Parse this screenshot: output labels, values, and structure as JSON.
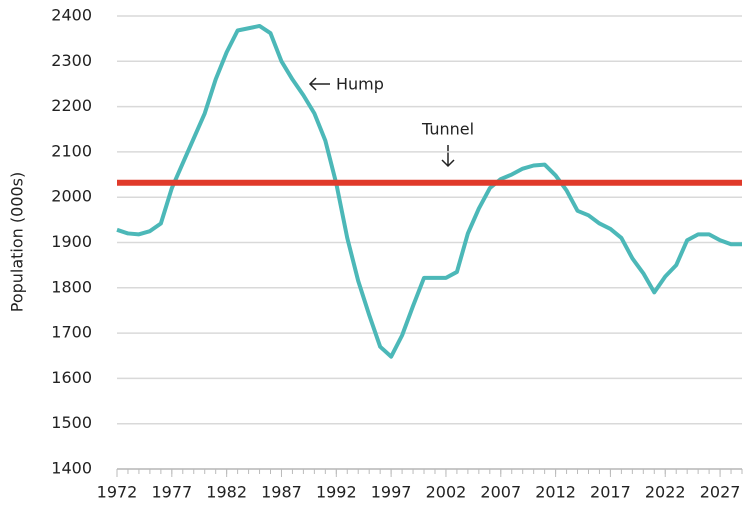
{
  "chart_data": {
    "type": "line",
    "y_axis_label": "Population (000s)",
    "x": [
      1972,
      1973,
      1974,
      1975,
      1976,
      1977,
      1978,
      1979,
      1980,
      1981,
      1982,
      1983,
      1984,
      1985,
      1986,
      1987,
      1988,
      1989,
      1990,
      1991,
      1992,
      1993,
      1994,
      1995,
      1996,
      1997,
      1998,
      1999,
      2000,
      2001,
      2002,
      2003,
      2004,
      2005,
      2006,
      2007,
      2008,
      2009,
      2010,
      2011,
      2012,
      2013,
      2014,
      2015,
      2016,
      2017,
      2018,
      2019,
      2020,
      2021,
      2022,
      2023,
      2024,
      2025,
      2026,
      2027,
      2028,
      2029
    ],
    "series": [
      {
        "color": "#4cb8b8",
        "values": [
          1928,
          1920,
          1918,
          1925,
          1942,
          2020,
          2075,
          2130,
          2185,
          2260,
          2320,
          2368,
          2373,
          2378,
          2362,
          2300,
          2260,
          2225,
          2185,
          2125,
          2030,
          1910,
          1815,
          1740,
          1670,
          1648,
          1695,
          1760,
          1822,
          1822,
          1822,
          1835,
          1920,
          1975,
          2020,
          2040,
          2050,
          2063,
          2070,
          2072,
          2048,
          2015,
          1970,
          1960,
          1942,
          1930,
          1910,
          1865,
          1832,
          1790,
          1825,
          1850,
          1905,
          1918,
          1918,
          1905,
          1896,
          1896
        ]
      }
    ],
    "reference_line": {
      "value": 2032,
      "color": "#e03a2a"
    },
    "annotations": [
      "Hump",
      "Tunnel"
    ],
    "xlim": [
      1972,
      2029
    ],
    "xticks": [
      1972,
      1977,
      1982,
      1987,
      1992,
      1997,
      2002,
      2007,
      2012,
      2017,
      2022,
      2027
    ],
    "ylim": [
      1400,
      2400
    ],
    "yticks": [
      1400,
      1500,
      1600,
      1700,
      1800,
      1900,
      2000,
      2100,
      2200,
      2300,
      2400
    ],
    "grid": true
  }
}
